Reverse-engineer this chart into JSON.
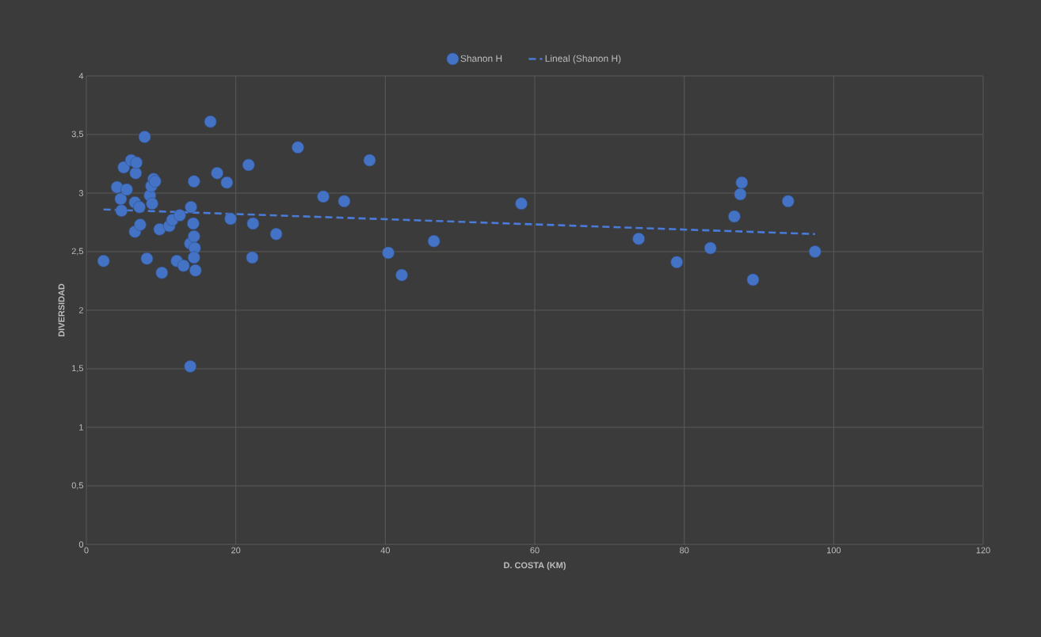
{
  "chart_data": {
    "type": "scatter",
    "xlabel": "D. COSTA (KM)",
    "ylabel": "DIVERSIDAD",
    "xlim": [
      0,
      120
    ],
    "xticks": [
      0,
      20,
      40,
      60,
      80,
      100,
      120
    ],
    "ylim": [
      0,
      4
    ],
    "yticks": [
      0,
      {
        "value": 0.5,
        "label": "0,5"
      },
      1,
      {
        "value": 1.5,
        "label": "1,5"
      },
      2,
      {
        "value": 2.5,
        "label": "2,5"
      },
      3,
      {
        "value": 3.5,
        "label": "3,5"
      },
      4
    ],
    "grid": true,
    "legend": "top",
    "series": [
      {
        "name": "Shanon H",
        "marker": "circle",
        "color": "#4472c4",
        "x": [
          2.3,
          4.1,
          4.6,
          4.7,
          5.0,
          5.4,
          6.0,
          6.6,
          6.7,
          6.5,
          6.5,
          7.1,
          7.2,
          7.8,
          8.1,
          8.5,
          8.8,
          8.7,
          9.0,
          9.2,
          9.8,
          10.1,
          11.1,
          11.5,
          12.1,
          12.5,
          13.0,
          13.9,
          14.0,
          13.9,
          14.3,
          14.4,
          14.4,
          14.5,
          14.4,
          14.6,
          16.6,
          17.5,
          18.8,
          19.3,
          21.7,
          22.2,
          22.3,
          25.4,
          28.3,
          31.7,
          34.5,
          37.9,
          40.4,
          42.2,
          46.5,
          58.2,
          73.9,
          79.0,
          83.5,
          86.7,
          87.5,
          87.7,
          89.2,
          93.9,
          97.5
        ],
        "values": [
          2.42,
          3.05,
          2.95,
          2.85,
          3.22,
          3.03,
          3.28,
          3.17,
          3.26,
          2.92,
          2.67,
          2.88,
          2.73,
          3.48,
          2.44,
          2.98,
          2.91,
          3.06,
          3.12,
          3.1,
          2.69,
          2.32,
          2.72,
          2.77,
          2.42,
          2.81,
          2.38,
          1.52,
          2.88,
          2.57,
          2.74,
          3.1,
          2.63,
          2.53,
          2.45,
          2.34,
          3.61,
          3.17,
          3.09,
          2.78,
          3.24,
          2.45,
          2.74,
          2.65,
          3.39,
          2.97,
          2.93,
          3.28,
          2.49,
          2.3,
          2.59,
          2.91,
          2.61,
          2.41,
          2.53,
          2.8,
          2.99,
          3.09,
          2.26,
          2.93,
          2.5
        ]
      },
      {
        "name": "Lineal (Shanon H)",
        "type": "line",
        "line_style": "dashed",
        "marker": "none",
        "color": "#4a7bd8",
        "x": [
          2.3,
          97.5
        ],
        "values": [
          2.86,
          2.65
        ]
      }
    ]
  }
}
